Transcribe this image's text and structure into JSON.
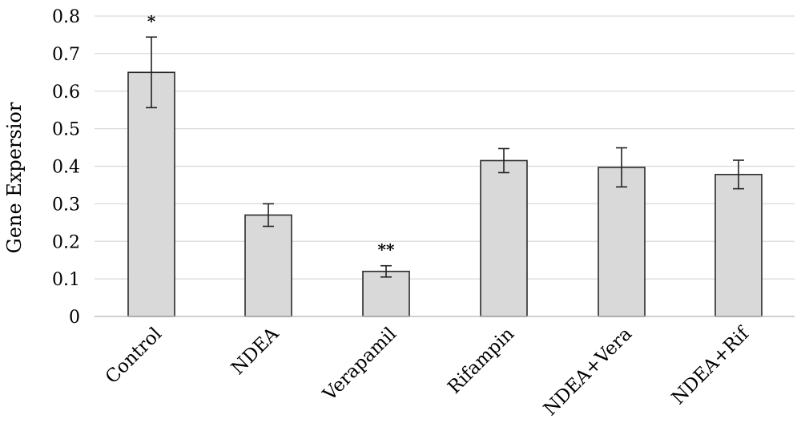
{
  "chart_data": {
    "type": "bar",
    "title": "",
    "xlabel": "",
    "ylabel": "Gene Expersior",
    "ylim": [
      0,
      0.8
    ],
    "yticks": [
      0,
      0.1,
      0.2,
      0.3,
      0.4,
      0.5,
      0.6,
      0.7,
      0.8
    ],
    "ytick_labels": [
      "0",
      "0.1",
      "0.2",
      "0.3",
      "0.4",
      "0.5",
      "0.6",
      "0.7",
      "0.8"
    ],
    "grid": true,
    "legend": "none",
    "categories": [
      "Control",
      "NDEA",
      "Verapamil",
      "Rifampin",
      "NDEA+Vera",
      "NDEA+Rif"
    ],
    "values": [
      0.65,
      0.27,
      0.12,
      0.415,
      0.397,
      0.378
    ],
    "errors": [
      0.094,
      0.03,
      0.015,
      0.032,
      0.052,
      0.038
    ],
    "significance": [
      "*",
      "",
      "**",
      "",
      "",
      ""
    ],
    "colors": {
      "bar_fill": "#d9d9d9",
      "bar_stroke": "#2b2b2b",
      "grid": "#d9d9d9",
      "axis": "#bfbfbf"
    }
  }
}
